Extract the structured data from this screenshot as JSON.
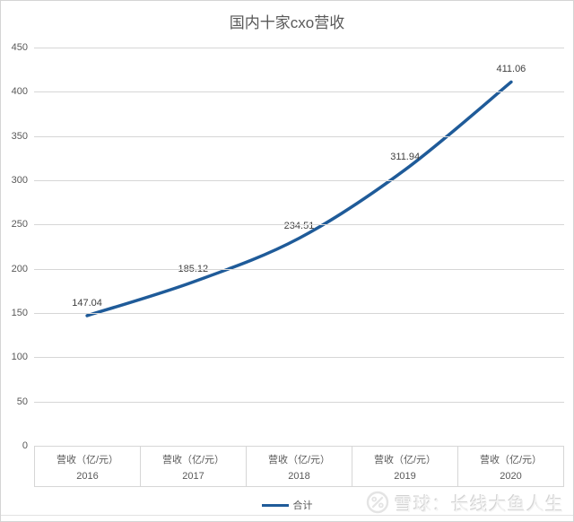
{
  "chart_data": {
    "type": "line",
    "title": "国内十家cxo营收",
    "categories": [
      "2016",
      "2017",
      "2018",
      "2019",
      "2020"
    ],
    "series": [
      {
        "name": "合计",
        "values": [
          147.04,
          185.12,
          234.51,
          311.94,
          411.06
        ],
        "color": "#1F5B99"
      }
    ],
    "data_labels": [
      "147.04",
      "185.12",
      "234.51",
      "311.94",
      "411.06"
    ],
    "x_axis": {
      "cell_header": "营收（亿/元）"
    },
    "y_axis": {
      "ticks": [
        450,
        400,
        350,
        300,
        250,
        200,
        150,
        100,
        50,
        0
      ],
      "min": 0,
      "max": 450
    },
    "grid": true,
    "smooth": true,
    "legend_position": "bottom"
  },
  "legend": {
    "label": "合计"
  },
  "watermark": {
    "text": "雪球：长线大鱼人生"
  },
  "colors": {
    "line": "#1F5B99",
    "grid": "#D6D6D6",
    "axis_text": "#595959",
    "data_label_text": "#404040",
    "watermark_text": "#F3F3F3"
  }
}
